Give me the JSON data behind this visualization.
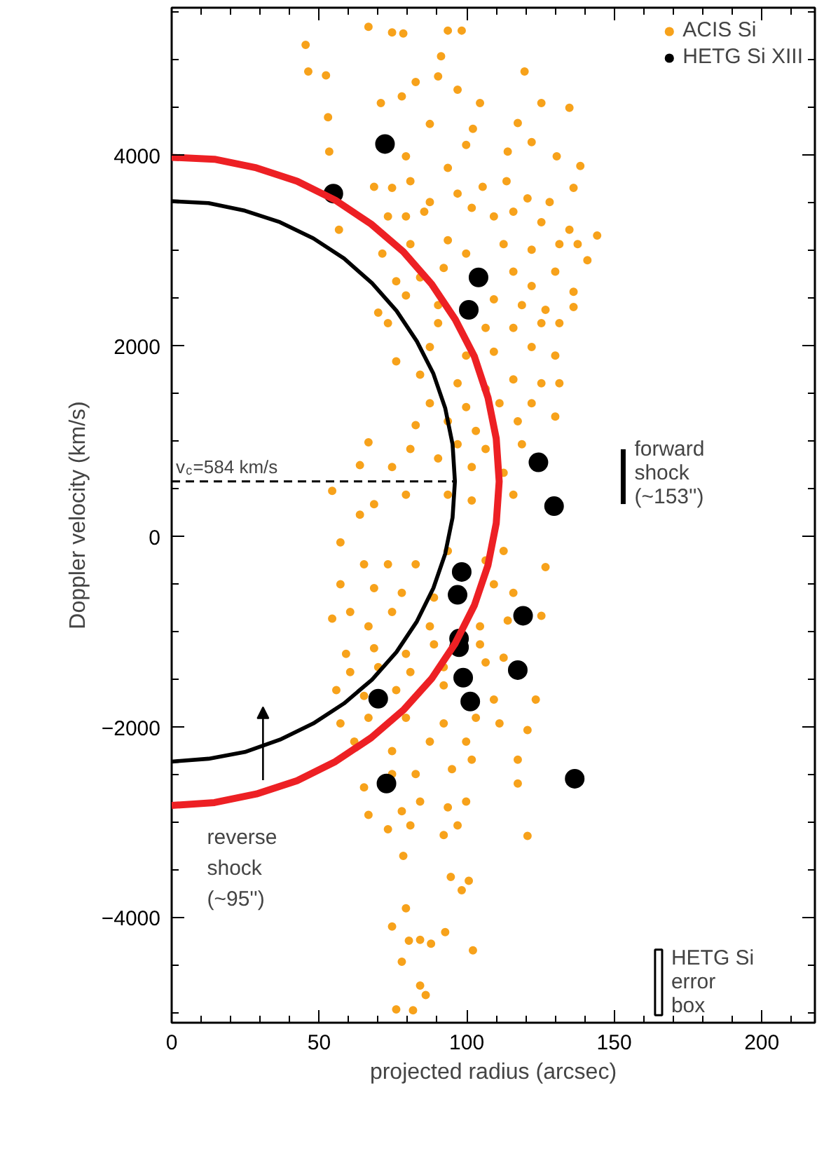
{
  "chart_data": {
    "type": "scatter",
    "xlabel": "projected radius (arcsec)",
    "ylabel": "Doppler velocity (km/s)",
    "xlim": [
      0,
      218
    ],
    "ylim": [
      -5100,
      5550
    ],
    "xticks": [
      0,
      50,
      100,
      150,
      200
    ],
    "yticks": [
      -4000,
      -2000,
      0,
      2000,
      4000
    ],
    "grid": false,
    "legend": "top right",
    "marker": "circle",
    "series": [
      {
        "name": "ACIS Si",
        "color": "#f7a21b",
        "x": [
          45.4,
          46.3,
          52.3,
          53,
          66.7,
          74.7,
          78.5,
          93.6,
          98.3,
          91.3,
          90.3,
          82.7,
          96.9,
          119.6,
          125.3,
          134.8,
          117.3,
          70.9,
          78,
          87.5,
          102.1,
          104.5,
          53.4,
          79.4,
          93.6,
          99.8,
          113.9,
          122,
          130.5,
          138.5,
          68.6,
          74.7,
          80.9,
          87.5,
          96.9,
          105.4,
          113.5,
          120.6,
          128.1,
          136.2,
          56.7,
          73.3,
          79.4,
          85.6,
          101.7,
          109.2,
          115.8,
          125.3,
          134.8,
          144.2,
          137.6,
          71.4,
          80.9,
          93.6,
          99.8,
          112.5,
          122,
          131.4,
          140.9,
          76.1,
          84.2,
          92.2,
          115.8,
          122,
          130,
          136.2,
          70,
          79.4,
          90.3,
          109.2,
          118.7,
          126.7,
          136.2,
          73.3,
          90.3,
          106.4,
          115.8,
          125.3,
          131.4,
          76.1,
          87.5,
          99.8,
          109.2,
          122,
          130,
          84.2,
          96.9,
          106.4,
          115.8,
          125.3,
          131.4,
          87.5,
          99.8,
          111.1,
          122,
          82.7,
          93.6,
          103.1,
          117.3,
          130,
          80.9,
          96.9,
          106.4,
          118.7,
          66.7,
          63.8,
          74.7,
          90.3,
          101.7,
          112.5,
          54.4,
          68.6,
          79.4,
          93.6,
          101.7,
          115.8,
          63.8,
          57.2,
          65.2,
          73.3,
          82.7,
          93.6,
          106.4,
          112.5,
          126.7,
          57.2,
          68.6,
          78,
          88.9,
          109.2,
          115.8,
          54.4,
          60.5,
          66.7,
          74.7,
          87.5,
          104.5,
          113.9,
          125.3,
          59.1,
          68.6,
          79.4,
          88.9,
          104.5,
          112.5,
          60.5,
          70,
          80.9,
          92.2,
          106.4,
          55.8,
          65.2,
          76.1,
          92.2,
          109.2,
          123.4,
          57.2,
          66.7,
          79.4,
          92.2,
          103.1,
          120.6,
          61.9,
          74.7,
          87.5,
          99.8,
          111.1,
          65.2,
          74.7,
          82.7,
          95,
          101.7,
          117.3,
          66.7,
          78,
          84.2,
          93.6,
          99.8,
          73.3,
          80.9,
          92.2,
          96.9,
          120.6,
          117.3,
          78.5,
          94.6,
          100.7,
          98.3,
          79.4,
          74.7,
          80.4,
          84.2,
          87.9,
          92.7,
          102.1,
          78,
          84.2,
          86.1,
          76.1,
          81.8
        ],
        "values": [
          5160,
          4880,
          4840,
          4400,
          5350,
          5290,
          5280,
          5310,
          5310,
          5040,
          4830,
          4770,
          4690,
          4880,
          4550,
          4500,
          4340,
          4550,
          4620,
          4330,
          4280,
          4550,
          4040,
          3990,
          3870,
          4110,
          4040,
          4140,
          3990,
          3890,
          3670,
          3660,
          3730,
          3510,
          3600,
          3670,
          3730,
          3550,
          3510,
          3660,
          3220,
          3360,
          3360,
          3410,
          3450,
          3360,
          3410,
          3300,
          3220,
          3160,
          3070,
          2970,
          3070,
          3110,
          2970,
          3070,
          3010,
          3070,
          2900,
          2680,
          2720,
          2820,
          2780,
          2630,
          2780,
          2570,
          2350,
          2530,
          2430,
          2490,
          2430,
          2380,
          2410,
          2240,
          2240,
          2190,
          2190,
          2240,
          2240,
          1840,
          1990,
          1900,
          1940,
          1990,
          1900,
          1700,
          1610,
          1550,
          1650,
          1610,
          1610,
          1400,
          1360,
          1400,
          1400,
          1170,
          1210,
          1110,
          1210,
          1260,
          920,
          970,
          920,
          970,
          990,
          750,
          730,
          820,
          730,
          670,
          480,
          340,
          440,
          440,
          380,
          440,
          230,
          -60,
          -290,
          -290,
          -290,
          -150,
          -250,
          -150,
          -320,
          -500,
          -540,
          -590,
          -640,
          -500,
          -590,
          -860,
          -790,
          -940,
          -790,
          -940,
          -940,
          -880,
          -830,
          -1230,
          -1170,
          -1230,
          -1130,
          -1130,
          -1270,
          -1420,
          -1370,
          -1420,
          -1370,
          -1320,
          -1610,
          -1670,
          -1610,
          -1560,
          -1710,
          -1710,
          -1960,
          -1900,
          -1900,
          -1960,
          -1900,
          -2030,
          -2150,
          -2250,
          -2150,
          -2150,
          -1960,
          -2630,
          -2490,
          -2490,
          -2440,
          -2340,
          -2340,
          -2920,
          -2880,
          -2780,
          -2840,
          -2780,
          -3070,
          -3030,
          -3130,
          -3030,
          -3140,
          -2590,
          -3350,
          -3570,
          -3610,
          -3710,
          -3900,
          -4090,
          -4240,
          -4230,
          -4270,
          -4150,
          -4340,
          -4460,
          -4710,
          -4810,
          -4960,
          -4970
        ]
      },
      {
        "name": "HETG Si XIII",
        "color": "#000000",
        "x": [
          72.3,
          54.8,
          104,
          100.7,
          124.3,
          129.6,
          98.3,
          96.9,
          119.1,
          97.4,
          97.4,
          98.8,
          70,
          101.2,
          117.3,
          72.8,
          136.6
        ],
        "values": [
          4120,
          3600,
          2720,
          2380,
          780,
          320,
          -370,
          -610,
          -830,
          -1070,
          -1160,
          -1480,
          -1700,
          -1730,
          -1400,
          -2590,
          -2540
        ]
      },
      {
        "type": "line",
        "marker": "none",
        "color": "#ed2024",
        "line_style": "solid",
        "x": [
          0,
          14.5,
          28.7,
          42.5,
          55.5,
          67.6,
          78.5,
          88.1,
          96.1,
          102.6,
          107.2,
          110,
          111,
          110,
          107.2,
          102.6,
          96.1,
          88.1,
          78.5,
          67.6,
          55.5,
          42.5,
          28.7,
          14.5,
          0
        ],
        "values": [
          -2820,
          -2790,
          -2700,
          -2560,
          -2360,
          -2110,
          -1820,
          -1490,
          -1120,
          -720,
          -300,
          140,
          580,
          1030,
          1460,
          1890,
          2280,
          2650,
          2990,
          3280,
          3530,
          3730,
          3870,
          3960,
          3980
        ]
      },
      {
        "type": "line",
        "marker": "none",
        "color": "#000000",
        "line_style": "solid",
        "x": [
          0,
          12.5,
          24.8,
          36.7,
          48,
          58.4,
          67.9,
          76.2,
          83.1,
          88.7,
          92.7,
          95.2,
          96,
          95.2,
          92.7,
          88.7,
          83.1,
          76.2,
          67.9,
          58.4,
          48,
          36.7,
          24.8,
          12.5,
          0
        ],
        "values": [
          -2360,
          -2330,
          -2260,
          -2130,
          -1960,
          -1750,
          -1500,
          -1210,
          -890,
          -540,
          -180,
          200,
          580,
          970,
          1350,
          1710,
          2050,
          2370,
          2660,
          2920,
          3130,
          3300,
          3420,
          3500,
          3520
        ]
      },
      {
        "type": "line",
        "marker": "none",
        "color": "#000000",
        "line_style": "dashed",
        "x": [
          0,
          96
        ],
        "values": [
          580,
          580
        ]
      }
    ],
    "annotations": [
      {
        "text": "v$_{c}$=584 km/s",
        "x": 0,
        "y": 580
      },
      "forward\nshock\n(~153'')",
      "reverse\nshock\n(~95'')",
      "HETG Si\nerror\nbox"
    ]
  }
}
